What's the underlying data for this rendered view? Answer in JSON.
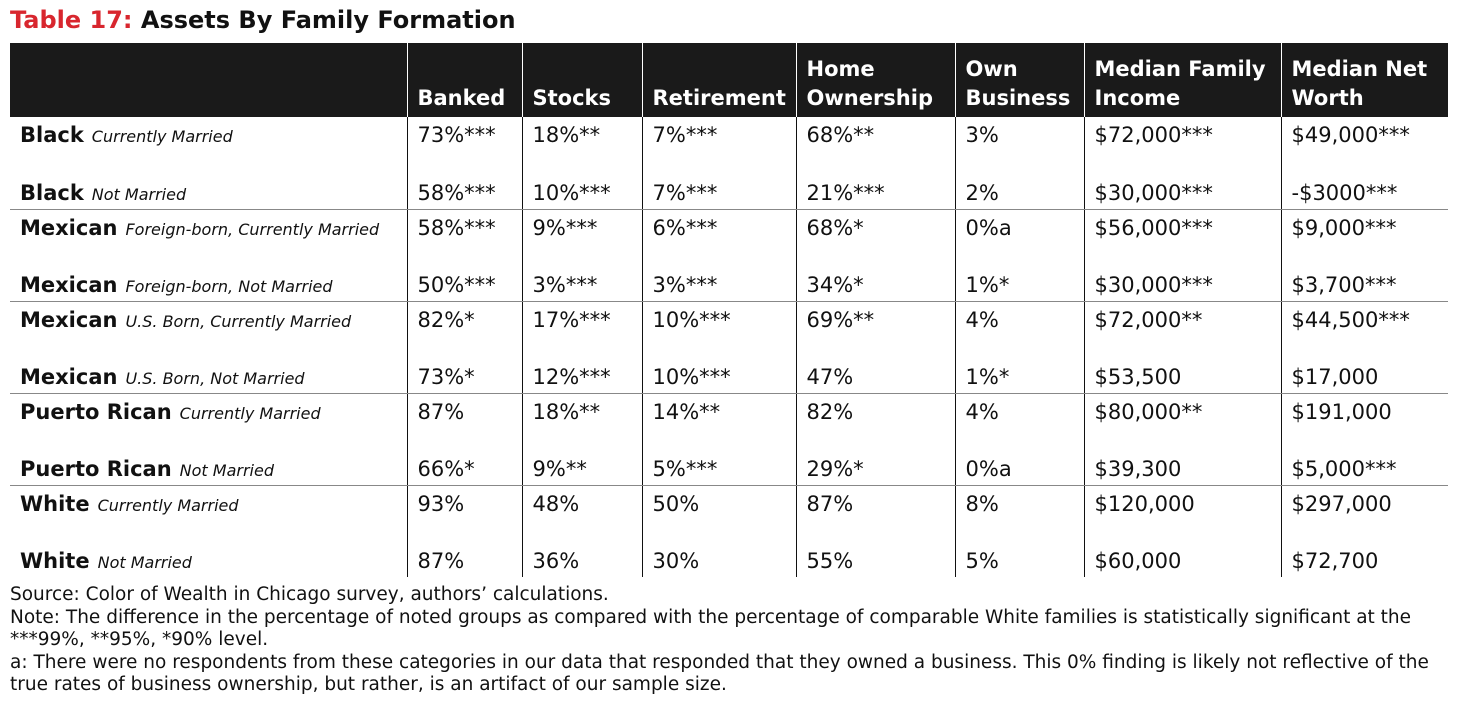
{
  "title": {
    "label": "Table 17:",
    "text": "Assets By Family Formation"
  },
  "table": {
    "columns": [
      "Banked",
      "Stocks",
      "Retirement",
      "Home Ownership",
      "Own Business",
      "Median Family Income",
      "Median Net Worth"
    ],
    "rows": [
      {
        "group": "Black",
        "qualifier": "Currently Married",
        "cells": [
          "73%***",
          "18%**",
          "7%***",
          "68%**",
          "3%",
          "$72,000***",
          "$49,000***"
        ]
      },
      {
        "group": "Black",
        "qualifier": "Not Married",
        "cells": [
          "58%***",
          "10%***",
          "7%***",
          "21%***",
          "2%",
          "$30,000***",
          "-$3000***"
        ]
      },
      {
        "group": "Mexican",
        "qualifier": "Foreign-born, Currently Married",
        "cells": [
          "58%***",
          "9%***",
          "6%***",
          "68%*",
          "0%a",
          "$56,000***",
          "$9,000***"
        ]
      },
      {
        "group": "Mexican",
        "qualifier": "Foreign-born, Not Married",
        "cells": [
          "50%***",
          "3%***",
          "3%***",
          "34%*",
          "1%*",
          "$30,000***",
          "$3,700***"
        ]
      },
      {
        "group": "Mexican",
        "qualifier": "U.S. Born, Currently Married",
        "cells": [
          "82%*",
          "17%***",
          "10%***",
          "69%**",
          "4%",
          "$72,000**",
          "$44,500***"
        ]
      },
      {
        "group": "Mexican",
        "qualifier": "U.S. Born, Not Married",
        "cells": [
          "73%*",
          "12%***",
          "10%***",
          "47%",
          "1%*",
          "$53,500",
          "$17,000"
        ]
      },
      {
        "group": "Puerto Rican",
        "qualifier": "Currently Married",
        "cells": [
          "87%",
          "18%**",
          "14%**",
          "82%",
          "4%",
          "$80,000**",
          "$191,000"
        ]
      },
      {
        "group": "Puerto Rican",
        "qualifier": "Not Married",
        "cells": [
          "66%*",
          "9%**",
          "5%***",
          "29%*",
          "0%a",
          "$39,300",
          "$5,000***"
        ]
      },
      {
        "group": "White",
        "qualifier": "Currently Married",
        "cells": [
          "93%",
          "48%",
          "50%",
          "87%",
          "8%",
          "$120,000",
          "$297,000"
        ]
      },
      {
        "group": "White",
        "qualifier": "Not Married",
        "cells": [
          "87%",
          "36%",
          "30%",
          "55%",
          "5%",
          "$60,000",
          "$72,700"
        ]
      }
    ]
  },
  "notes": {
    "source": "Source: Color of Wealth in Chicago survey, authors’ calculations.",
    "note": "Note: The difference in the percentage of noted groups as compared with the percentage of comparable White families is statistically significant at the ***99%, **95%, *90% level.",
    "footnote": "a: There were no respondents from these categories in our data that responded that they owned a business. This 0% finding is likely not reflective of the true rates of business ownership, but rather, is an artifact of our sample size."
  }
}
